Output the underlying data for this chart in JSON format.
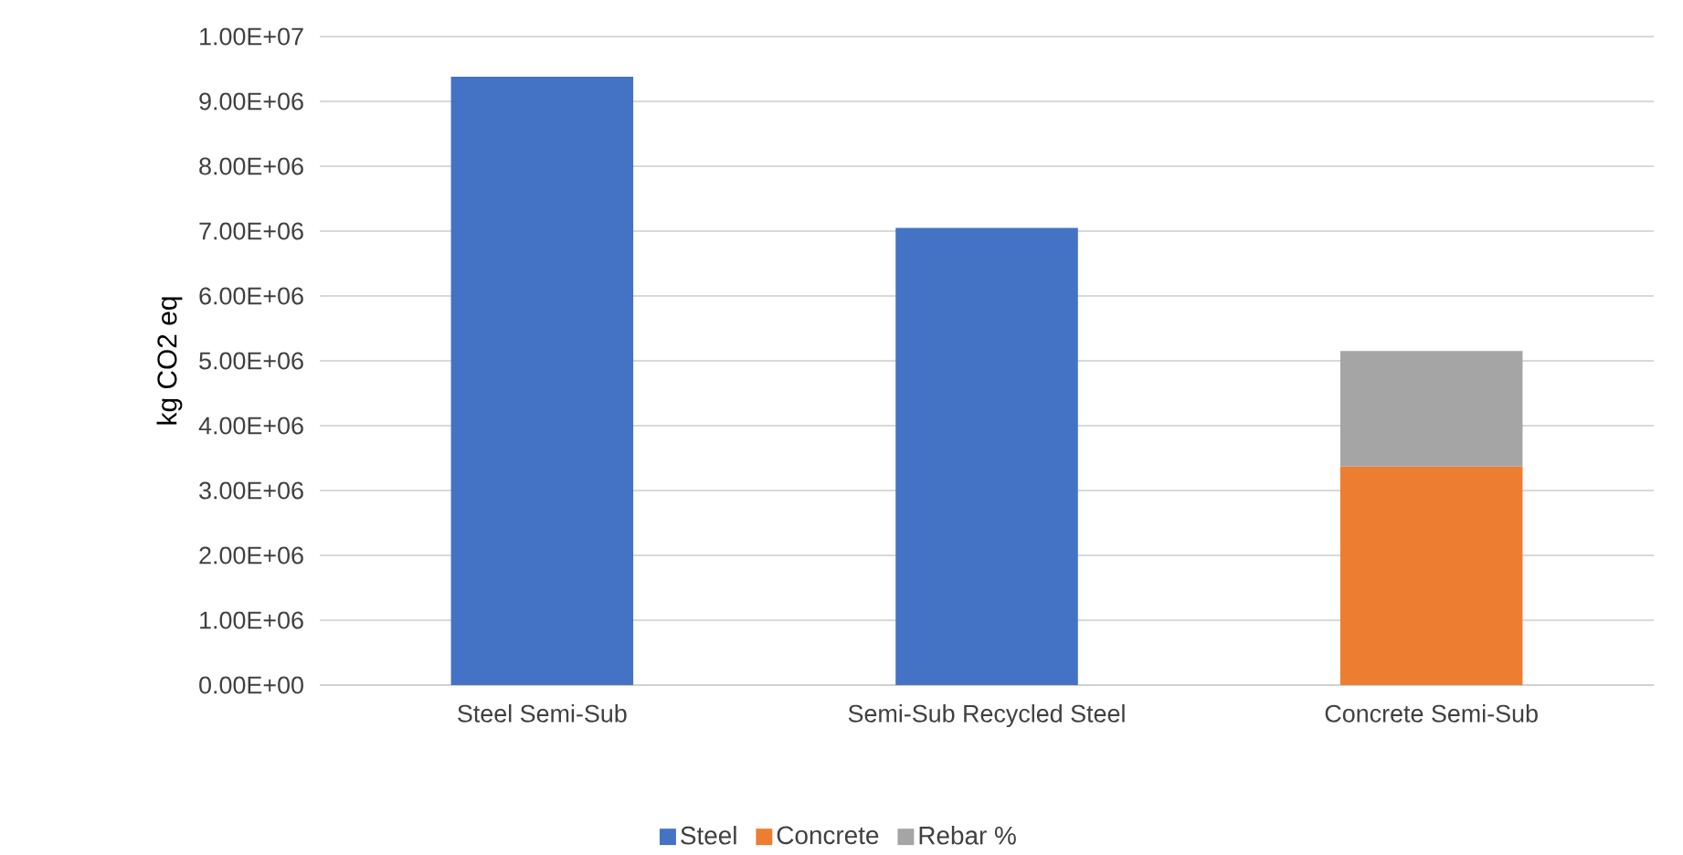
{
  "chart_data": {
    "type": "bar",
    "stacked": true,
    "ylabel": "kg CO2 eq",
    "categories": [
      "Steel Semi-Sub",
      "Semi-Sub Recycled Steel",
      "Concrete Semi-Sub"
    ],
    "series": [
      {
        "name": "Steel",
        "color": "#4472c4",
        "values": [
          9380000,
          7050000,
          null
        ]
      },
      {
        "name": "Concrete",
        "color": "#ed7d31",
        "values": [
          null,
          null,
          3370000
        ]
      },
      {
        "name": "Rebar %",
        "color": "#a5a5a5",
        "values": [
          null,
          null,
          1780000
        ]
      }
    ],
    "ylim": [
      0,
      10000000
    ],
    "yticks": [
      {
        "value": 0,
        "label": "0.00E+00"
      },
      {
        "value": 1000000,
        "label": "1.00E+06"
      },
      {
        "value": 2000000,
        "label": "2.00E+06"
      },
      {
        "value": 3000000,
        "label": "3.00E+06"
      },
      {
        "value": 4000000,
        "label": "4.00E+06"
      },
      {
        "value": 5000000,
        "label": "5.00E+06"
      },
      {
        "value": 6000000,
        "label": "6.00E+06"
      },
      {
        "value": 7000000,
        "label": "7.00E+06"
      },
      {
        "value": 8000000,
        "label": "8.00E+06"
      },
      {
        "value": 9000000,
        "label": "9.00E+06"
      },
      {
        "value": 10000000,
        "label": "1.00E+07"
      }
    ],
    "grid": "y",
    "legend": "bottom"
  }
}
